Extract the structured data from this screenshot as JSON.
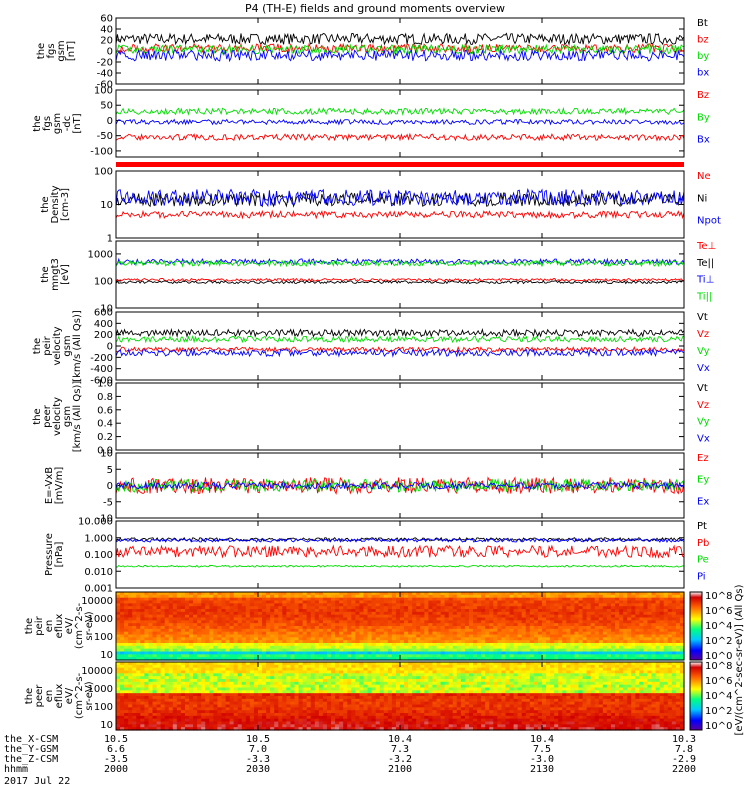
{
  "title": "P4 (TH-E) fields and ground moments overview",
  "footer": {
    "rows": [
      {
        "label": "the_X-CSM",
        "values": [
          "10.5",
          "10.5",
          "10.4",
          "10.4",
          "10.3"
        ]
      },
      {
        "label": "the_Y-GSM",
        "values": [
          "6.6",
          "7.0",
          "7.3",
          "7.5",
          "7.8"
        ]
      },
      {
        "label": "the_Z-CSM",
        "values": [
          "-3.5",
          "-3.3",
          "-3.2",
          "-3.0",
          "-2.9"
        ]
      },
      {
        "label": "hhmm",
        "values": [
          "2000",
          "2030",
          "2100",
          "2130",
          "2200"
        ]
      }
    ],
    "date": "2017 Jul 22"
  },
  "colorbar": {
    "label": "[eV/(cm^2-sec-sr-eV)] (All Qs)",
    "ticks_top": [
      "10^8",
      "10^6",
      "10^4",
      "10^2",
      "10^0"
    ],
    "ticks_bottom": [
      "10^8",
      "10^6",
      "10^4",
      "10^2",
      "10^0"
    ]
  },
  "chart_data": [
    {
      "type": "line",
      "panel": "fgs",
      "ylabel": [
        "the",
        "fgs",
        "gsm",
        "[nT]"
      ],
      "ylim": [
        -60,
        60
      ],
      "ticks": [
        "60",
        "40",
        "20",
        "0",
        "-20",
        "-40",
        "-60"
      ],
      "series": [
        {
          "name": "Bt",
          "color": "#000000",
          "mean": 22,
          "amp": 10
        },
        {
          "name": "bz",
          "color": "#ff0000",
          "mean": 5,
          "amp": 8
        },
        {
          "name": "by",
          "color": "#00dd00",
          "mean": 3,
          "amp": 8
        },
        {
          "name": "bx",
          "color": "#0000ff",
          "mean": -8,
          "amp": 10
        }
      ]
    },
    {
      "type": "line",
      "panel": "fgs-dc",
      "ylabel": [
        "the",
        "fgs",
        "gsm",
        "-dc",
        "[nT]"
      ],
      "ylim": [
        -120,
        100
      ],
      "ticks": [
        "100",
        "50",
        "0",
        "-50",
        "-100"
      ],
      "series": [
        {
          "name": "Bz",
          "color": "#ff0000",
          "mean": -55,
          "amp": 10
        },
        {
          "name": "By",
          "color": "#00dd00",
          "mean": 30,
          "amp": 10
        },
        {
          "name": "Bx",
          "color": "#0000ff",
          "mean": -5,
          "amp": 8
        }
      ]
    },
    {
      "type": "line",
      "panel": "density",
      "ylabel": [
        "the",
        "Density",
        "[cm-3]"
      ],
      "yscale": "log",
      "ylim": [
        1,
        100
      ],
      "ticks": [
        "100",
        "10",
        "1"
      ],
      "series": [
        {
          "name": "Ne",
          "color": "#ff0000",
          "mean": 5,
          "amp": 0.1
        },
        {
          "name": "Ni",
          "color": "#000000",
          "mean": 14,
          "amp": 0.2
        },
        {
          "name": "Npot",
          "color": "#0000ff",
          "mean": 16,
          "amp": 0.25
        }
      ]
    },
    {
      "type": "line",
      "panel": "temperature",
      "ylabel": [
        "the",
        "mngt3",
        "[eV]"
      ],
      "yscale": "log",
      "ylim": [
        10,
        3000
      ],
      "ticks": [
        "1000",
        "100",
        "10"
      ],
      "series": [
        {
          "name": "Te⊥",
          "color": "#ff0000",
          "mean": 110,
          "amp": 0.05
        },
        {
          "name": "Te||",
          "color": "#000000",
          "mean": 90,
          "amp": 0.05
        },
        {
          "name": "Ti⊥",
          "color": "#0000ff",
          "mean": 520,
          "amp": 0.1
        },
        {
          "name": "Ti||",
          "color": "#00dd00",
          "mean": 450,
          "amp": 0.1
        }
      ]
    },
    {
      "type": "line",
      "panel": "peir-velocity",
      "ylabel": [
        "the",
        "peir",
        "velocity",
        "gsm",
        "[km/s (All Qs)]"
      ],
      "ylim": [
        -600,
        600
      ],
      "ticks": [
        "600",
        "400",
        "200",
        "0",
        "-200",
        "-400",
        "-600"
      ],
      "series": [
        {
          "name": "Vt",
          "color": "#000000",
          "mean": 230,
          "amp": 60
        },
        {
          "name": "Vz",
          "color": "#ff0000",
          "mean": -60,
          "amp": 40
        },
        {
          "name": "Vy",
          "color": "#00dd00",
          "mean": 120,
          "amp": 50
        },
        {
          "name": "Vx",
          "color": "#0000ff",
          "mean": -120,
          "amp": 60
        }
      ]
    },
    {
      "type": "line",
      "panel": "peer-velocity",
      "ylabel": [
        "the",
        "peer",
        "velocity",
        "gsm",
        "[km/s (All Qs)]"
      ],
      "ylim": [
        0,
        1
      ],
      "ticks": [
        "1.0",
        "0.8",
        "0.6",
        "0.4",
        "0.2",
        "0.0"
      ],
      "series": [
        {
          "name": "Vt",
          "color": "#000000"
        },
        {
          "name": "Vz",
          "color": "#ff0000"
        },
        {
          "name": "Vy",
          "color": "#00dd00"
        },
        {
          "name": "Vx",
          "color": "#0000ff"
        }
      ]
    },
    {
      "type": "line",
      "panel": "efield",
      "ylabel": [
        "E=-VxB",
        "[mV/m]"
      ],
      "ylim": [
        -10,
        10
      ],
      "ticks": [
        "10",
        "5",
        "0",
        "-5",
        "-10"
      ],
      "series": [
        {
          "name": "Ez",
          "color": "#ff0000",
          "mean": 0,
          "amp": 2.5
        },
        {
          "name": "Ey",
          "color": "#00dd00",
          "mean": 0,
          "amp": 2
        },
        {
          "name": "Ex",
          "color": "#0000ff",
          "mean": 0,
          "amp": 1
        }
      ]
    },
    {
      "type": "line",
      "panel": "pressure",
      "ylabel": [
        "Pressure",
        "[nPa]"
      ],
      "yscale": "log",
      "ylim": [
        0.001,
        10
      ],
      "ticks": [
        "10.000",
        "1.000",
        "0.100",
        "0.010",
        "0.001"
      ],
      "series": [
        {
          "name": "Pt",
          "color": "#000000",
          "mean": 0.8,
          "amp": 0.1
        },
        {
          "name": "Pb",
          "color": "#ff0000",
          "mean": 0.15,
          "amp": 0.35
        },
        {
          "name": "Pe",
          "color": "#00dd00",
          "mean": 0.02,
          "amp": 0.05
        },
        {
          "name": "Pi",
          "color": "#0000ff",
          "mean": 0.7,
          "amp": 0.1
        }
      ]
    },
    {
      "type": "heatmap",
      "panel": "peir-en-eflux",
      "ylabel": [
        "the",
        "peir",
        "en",
        "eflux",
        "eV/",
        "(cm^2-s-",
        "sr-eV)"
      ],
      "yscale": "log",
      "ylim": [
        5,
        30000
      ],
      "ticks": [
        "10000",
        "1000",
        "100",
        "10"
      ],
      "zlim": [
        1,
        100000000
      ]
    },
    {
      "type": "heatmap",
      "panel": "peer-en-eflux",
      "ylabel": [
        "the",
        "peer",
        "en",
        "eflux",
        "eV/",
        "(cm^2-s-",
        "sr-eV)"
      ],
      "yscale": "log",
      "ylim": [
        5,
        30000
      ],
      "ticks": [
        "10000",
        "1000",
        "100",
        "10"
      ],
      "zlim": [
        1,
        100000000
      ]
    }
  ]
}
